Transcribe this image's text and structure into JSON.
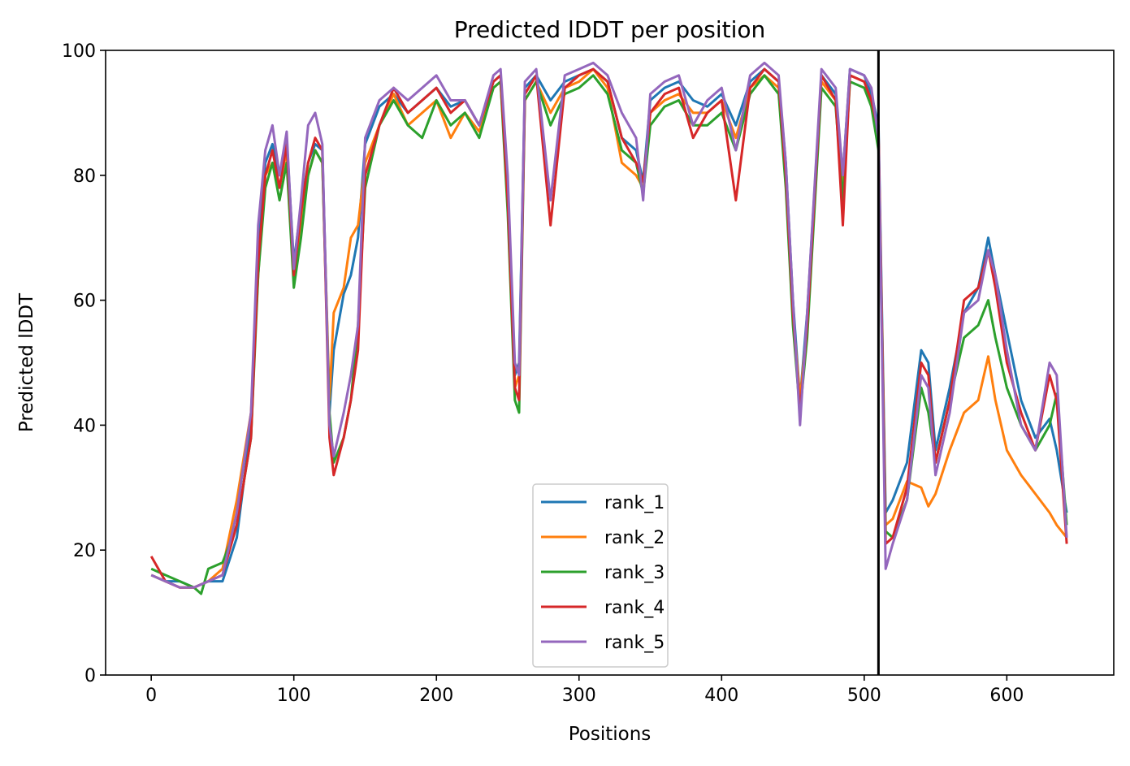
{
  "chart_data": {
    "type": "line",
    "title": "Predicted lDDT per position",
    "xlabel": "Positions",
    "ylabel": "Predicted lDDT",
    "xlim": [
      -32,
      675
    ],
    "ylim": [
      0,
      100
    ],
    "xticks": [
      0,
      100,
      200,
      300,
      400,
      500,
      600
    ],
    "yticks": [
      0,
      20,
      40,
      60,
      80,
      100
    ],
    "grid": false,
    "legend_position": "lower center",
    "chain_break_x": 510,
    "series": [
      {
        "name": "rank_1",
        "color": "#1f77b4",
        "x": [
          0,
          10,
          20,
          30,
          40,
          50,
          60,
          70,
          75,
          80,
          85,
          90,
          95,
          100,
          105,
          110,
          115,
          120,
          125,
          128,
          135,
          140,
          145,
          150,
          160,
          170,
          180,
          190,
          200,
          210,
          220,
          230,
          240,
          245,
          250,
          255,
          258,
          262,
          270,
          280,
          290,
          300,
          310,
          320,
          330,
          340,
          345,
          350,
          360,
          370,
          380,
          390,
          400,
          410,
          420,
          430,
          440,
          445,
          450,
          455,
          460,
          470,
          480,
          485,
          490,
          500,
          505,
          510,
          515,
          520,
          530,
          540,
          545,
          550,
          560,
          570,
          580,
          587,
          592,
          600,
          610,
          620,
          630,
          635,
          642
        ],
        "y": [
          16,
          15,
          15,
          14,
          15,
          15,
          22,
          40,
          70,
          82,
          85,
          80,
          86,
          66,
          75,
          82,
          85,
          84,
          42,
          52,
          61,
          64,
          70,
          85,
          91,
          93,
          90,
          92,
          94,
          91,
          92,
          88,
          95,
          96,
          78,
          48,
          50,
          94,
          96,
          92,
          95,
          96,
          97,
          95,
          86,
          84,
          79,
          92,
          94,
          95,
          92,
          91,
          93,
          88,
          95,
          97,
          95,
          82,
          60,
          44,
          58,
          96,
          93,
          80,
          97,
          96,
          93,
          88,
          26,
          28,
          34,
          52,
          50,
          36,
          46,
          58,
          62,
          70,
          64,
          55,
          44,
          38,
          41,
          36,
          26
        ]
      },
      {
        "name": "rank_2",
        "color": "#ff7f0e",
        "x": [
          0,
          10,
          20,
          30,
          40,
          50,
          60,
          70,
          75,
          80,
          85,
          90,
          95,
          100,
          105,
          110,
          115,
          120,
          125,
          128,
          135,
          140,
          145,
          150,
          160,
          170,
          180,
          190,
          200,
          210,
          220,
          230,
          240,
          245,
          250,
          255,
          258,
          262,
          270,
          280,
          290,
          300,
          310,
          320,
          330,
          340,
          345,
          350,
          360,
          370,
          380,
          390,
          400,
          410,
          420,
          430,
          440,
          445,
          450,
          455,
          460,
          470,
          480,
          485,
          490,
          500,
          505,
          510,
          515,
          520,
          530,
          540,
          545,
          550,
          560,
          570,
          580,
          587,
          592,
          600,
          610,
          620,
          630,
          635,
          642
        ],
        "y": [
          16,
          15,
          14,
          14,
          15,
          17,
          28,
          42,
          64,
          80,
          82,
          78,
          84,
          63,
          72,
          80,
          84,
          82,
          44,
          58,
          62,
          70,
          72,
          82,
          88,
          93,
          88,
          90,
          92,
          86,
          90,
          87,
          94,
          95,
          76,
          46,
          48,
          92,
          95,
          90,
          94,
          95,
          97,
          94,
          82,
          80,
          78,
          90,
          92,
          93,
          90,
          90,
          92,
          86,
          94,
          96,
          94,
          80,
          58,
          44,
          56,
          95,
          92,
          78,
          96,
          95,
          92,
          86,
          24,
          25,
          31,
          30,
          27,
          29,
          36,
          42,
          44,
          51,
          44,
          36,
          32,
          29,
          26,
          24,
          22
        ]
      },
      {
        "name": "rank_3",
        "color": "#2ca02c",
        "x": [
          0,
          10,
          20,
          30,
          35,
          40,
          50,
          60,
          70,
          75,
          80,
          85,
          90,
          95,
          100,
          105,
          110,
          115,
          120,
          125,
          128,
          135,
          140,
          145,
          150,
          160,
          170,
          180,
          190,
          200,
          210,
          220,
          230,
          240,
          245,
          250,
          255,
          258,
          262,
          270,
          280,
          290,
          300,
          310,
          320,
          330,
          340,
          345,
          350,
          360,
          370,
          380,
          390,
          400,
          410,
          420,
          430,
          440,
          445,
          450,
          455,
          460,
          470,
          480,
          485,
          490,
          500,
          505,
          510,
          515,
          520,
          530,
          540,
          545,
          550,
          560,
          570,
          580,
          587,
          592,
          600,
          610,
          620,
          630,
          635,
          642
        ],
        "y": [
          17,
          16,
          15,
          14,
          13,
          17,
          18,
          24,
          38,
          64,
          78,
          82,
          76,
          82,
          62,
          70,
          80,
          84,
          82,
          42,
          34,
          38,
          44,
          56,
          78,
          88,
          92,
          88,
          86,
          92,
          88,
          90,
          86,
          94,
          95,
          74,
          44,
          42,
          92,
          95,
          88,
          93,
          94,
          96,
          93,
          84,
          82,
          77,
          88,
          91,
          92,
          88,
          88,
          90,
          84,
          93,
          96,
          93,
          78,
          56,
          42,
          54,
          94,
          91,
          76,
          95,
          94,
          91,
          84,
          23,
          22,
          28,
          46,
          42,
          34,
          44,
          54,
          56,
          60,
          54,
          46,
          40,
          36,
          40,
          45,
          24
        ]
      },
      {
        "name": "rank_4",
        "color": "#d62728",
        "x": [
          0,
          10,
          20,
          30,
          40,
          50,
          60,
          70,
          75,
          80,
          85,
          90,
          95,
          100,
          105,
          110,
          115,
          120,
          125,
          128,
          135,
          140,
          145,
          150,
          160,
          170,
          180,
          190,
          200,
          210,
          220,
          230,
          240,
          245,
          250,
          255,
          258,
          262,
          270,
          280,
          290,
          300,
          310,
          320,
          330,
          340,
          345,
          350,
          360,
          370,
          380,
          390,
          400,
          410,
          420,
          430,
          440,
          445,
          450,
          455,
          460,
          470,
          480,
          485,
          490,
          500,
          505,
          510,
          515,
          520,
          530,
          540,
          545,
          550,
          560,
          570,
          580,
          587,
          592,
          600,
          610,
          620,
          630,
          635,
          642
        ],
        "y": [
          19,
          15,
          14,
          14,
          15,
          16,
          24,
          38,
          66,
          80,
          84,
          78,
          85,
          64,
          74,
          82,
          86,
          84,
          38,
          32,
          38,
          44,
          52,
          80,
          88,
          94,
          90,
          92,
          94,
          90,
          92,
          88,
          95,
          96,
          76,
          46,
          44,
          93,
          96,
          72,
          94,
          96,
          97,
          95,
          86,
          82,
          79,
          90,
          93,
          94,
          86,
          90,
          92,
          76,
          94,
          97,
          95,
          80,
          58,
          42,
          56,
          96,
          92,
          72,
          96,
          95,
          92,
          87,
          21,
          22,
          30,
          50,
          48,
          34,
          44,
          60,
          62,
          68,
          62,
          50,
          42,
          36,
          48,
          44,
          21
        ]
      },
      {
        "name": "rank_5",
        "color": "#9467bd",
        "x": [
          0,
          10,
          20,
          30,
          40,
          50,
          60,
          70,
          75,
          80,
          85,
          90,
          95,
          100,
          105,
          110,
          115,
          120,
          125,
          128,
          135,
          140,
          145,
          150,
          160,
          170,
          180,
          190,
          200,
          210,
          220,
          230,
          240,
          245,
          250,
          255,
          258,
          262,
          270,
          280,
          290,
          300,
          310,
          320,
          330,
          340,
          345,
          350,
          360,
          370,
          380,
          390,
          400,
          410,
          420,
          430,
          440,
          445,
          450,
          455,
          460,
          470,
          480,
          485,
          490,
          500,
          505,
          510,
          515,
          520,
          530,
          540,
          545,
          550,
          560,
          570,
          580,
          587,
          592,
          600,
          610,
          620,
          630,
          635,
          642
        ],
        "y": [
          16,
          15,
          14,
          14,
          15,
          16,
          26,
          42,
          72,
          84,
          88,
          80,
          87,
          65,
          76,
          88,
          90,
          85,
          40,
          35,
          42,
          48,
          56,
          86,
          92,
          94,
          92,
          94,
          96,
          92,
          92,
          88,
          96,
          97,
          80,
          50,
          48,
          95,
          97,
          76,
          96,
          97,
          98,
          96,
          90,
          86,
          76,
          93,
          95,
          96,
          88,
          92,
          94,
          84,
          96,
          98,
          96,
          82,
          60,
          40,
          58,
          97,
          94,
          80,
          97,
          96,
          94,
          86,
          17,
          21,
          28,
          48,
          46,
          32,
          42,
          58,
          60,
          68,
          64,
          52,
          40,
          36,
          50,
          48,
          22
        ]
      }
    ]
  }
}
